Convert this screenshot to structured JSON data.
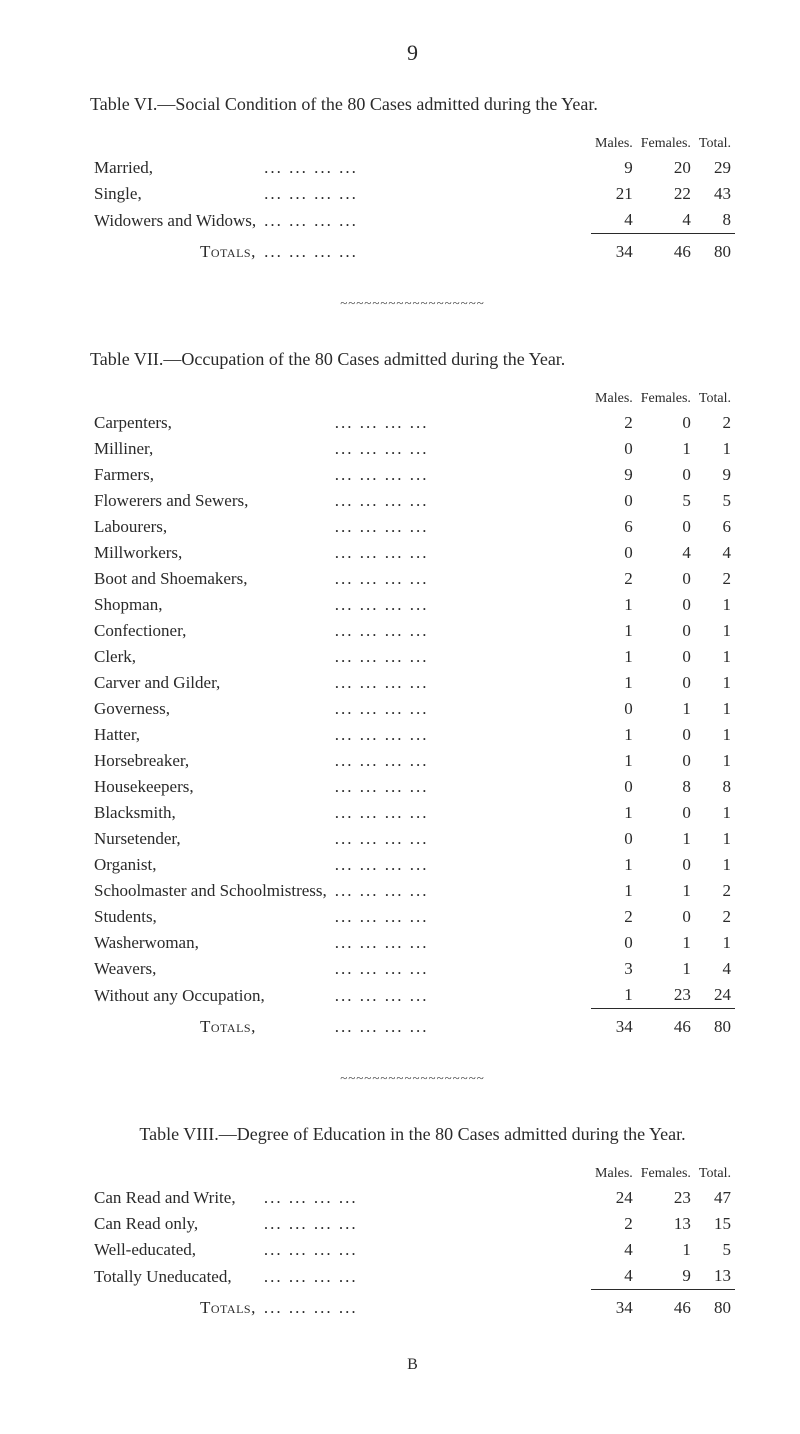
{
  "page_number": "9",
  "table6": {
    "title": "Table VI.—Social Condition of the 80 Cases admitted during the Year.",
    "columns": [
      "Males.",
      "Females.",
      "Total."
    ],
    "rows": [
      {
        "label": "Married,",
        "males": "9",
        "females": "20",
        "total": "29"
      },
      {
        "label": "Single,",
        "males": "21",
        "females": "22",
        "total": "43"
      },
      {
        "label": "Widowers and Widows,",
        "males": "4",
        "females": "4",
        "total": "8"
      }
    ],
    "totals": {
      "label": "Totals,",
      "males": "34",
      "females": "46",
      "total": "80"
    }
  },
  "table7": {
    "title": "Table VII.—Occupation of the 80 Cases admitted during the Year.",
    "columns": [
      "Males.",
      "Females.",
      "Total."
    ],
    "rows": [
      {
        "label": "Carpenters,",
        "males": "2",
        "females": "0",
        "total": "2"
      },
      {
        "label": "Milliner,",
        "males": "0",
        "females": "1",
        "total": "1"
      },
      {
        "label": "Farmers,",
        "males": "9",
        "females": "0",
        "total": "9"
      },
      {
        "label": "Flowerers and Sewers,",
        "males": "0",
        "females": "5",
        "total": "5"
      },
      {
        "label": "Labourers,",
        "males": "6",
        "females": "0",
        "total": "6"
      },
      {
        "label": "Millworkers,",
        "males": "0",
        "females": "4",
        "total": "4"
      },
      {
        "label": "Boot and Shoemakers,",
        "males": "2",
        "females": "0",
        "total": "2"
      },
      {
        "label": "Shopman,",
        "males": "1",
        "females": "0",
        "total": "1"
      },
      {
        "label": "Confectioner,",
        "males": "1",
        "females": "0",
        "total": "1"
      },
      {
        "label": "Clerk,",
        "males": "1",
        "females": "0",
        "total": "1"
      },
      {
        "label": "Carver and Gilder,",
        "males": "1",
        "females": "0",
        "total": "1"
      },
      {
        "label": "Governess,",
        "males": "0",
        "females": "1",
        "total": "1"
      },
      {
        "label": "Hatter,",
        "males": "1",
        "females": "0",
        "total": "1"
      },
      {
        "label": "Horsebreaker,",
        "males": "1",
        "females": "0",
        "total": "1"
      },
      {
        "label": "Housekeepers,",
        "males": "0",
        "females": "8",
        "total": "8"
      },
      {
        "label": "Blacksmith,",
        "males": "1",
        "females": "0",
        "total": "1"
      },
      {
        "label": "Nursetender,",
        "males": "0",
        "females": "1",
        "total": "1"
      },
      {
        "label": "Organist,",
        "males": "1",
        "females": "0",
        "total": "1"
      },
      {
        "label": "Schoolmaster and Schoolmistress,",
        "males": "1",
        "females": "1",
        "total": "2"
      },
      {
        "label": "Students,",
        "males": "2",
        "females": "0",
        "total": "2"
      },
      {
        "label": "Washerwoman,",
        "males": "0",
        "females": "1",
        "total": "1"
      },
      {
        "label": "Weavers,",
        "males": "3",
        "females": "1",
        "total": "4"
      },
      {
        "label": "Without any Occupation,",
        "males": "1",
        "females": "23",
        "total": "24"
      }
    ],
    "totals": {
      "label": "Totals,",
      "males": "34",
      "females": "46",
      "total": "80"
    }
  },
  "table8": {
    "title": "Table VIII.—Degree of Education in the 80 Cases admitted during the Year.",
    "columns": [
      "Males.",
      "Females.",
      "Total."
    ],
    "rows": [
      {
        "label": "Can Read and Write,",
        "males": "24",
        "females": "23",
        "total": "47"
      },
      {
        "label": "Can Read only,",
        "males": "2",
        "females": "13",
        "total": "15"
      },
      {
        "label": "Well-educated,",
        "males": "4",
        "females": "1",
        "total": "5"
      },
      {
        "label": "Totally Uneducated,",
        "males": "4",
        "females": "9",
        "total": "13"
      }
    ],
    "totals": {
      "label": "Totals,",
      "males": "34",
      "females": "46",
      "total": "80"
    }
  },
  "signature": "B",
  "wave": "~~~~~~~~~~~~~~~~~~",
  "colors": {
    "text": "#2a2a2a",
    "background": "#ffffff"
  }
}
